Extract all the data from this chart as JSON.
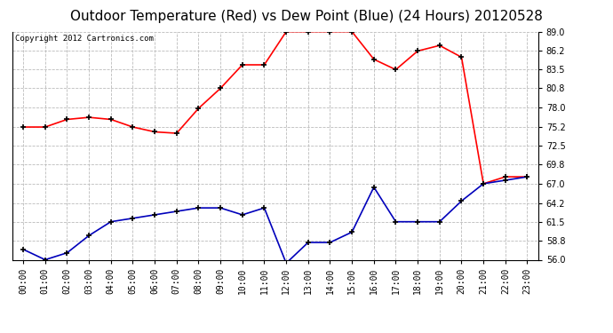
{
  "title": "Outdoor Temperature (Red) vs Dew Point (Blue) (24 Hours) 20120528",
  "copyright": "Copyright 2012 Cartronics.com",
  "x_labels": [
    "00:00",
    "01:00",
    "02:00",
    "03:00",
    "04:00",
    "05:00",
    "06:00",
    "07:00",
    "08:00",
    "09:00",
    "10:00",
    "11:00",
    "12:00",
    "13:00",
    "14:00",
    "15:00",
    "16:00",
    "17:00",
    "18:00",
    "19:00",
    "20:00",
    "21:00",
    "22:00",
    "23:00"
  ],
  "temp_red": [
    75.2,
    75.2,
    76.3,
    76.6,
    76.3,
    75.2,
    74.5,
    74.3,
    77.9,
    80.8,
    84.2,
    84.2,
    89.0,
    89.0,
    89.0,
    89.0,
    85.0,
    83.5,
    86.2,
    87.0,
    85.3,
    67.0,
    68.0,
    68.0
  ],
  "dew_blue": [
    57.5,
    56.0,
    57.0,
    59.5,
    61.5,
    62.0,
    62.5,
    63.0,
    63.5,
    63.5,
    62.5,
    63.5,
    55.5,
    58.5,
    58.5,
    60.0,
    66.5,
    61.5,
    61.5,
    61.5,
    64.5,
    67.0,
    67.5,
    68.0
  ],
  "ylim": [
    56.0,
    89.0
  ],
  "yticks": [
    56.0,
    58.8,
    61.5,
    64.2,
    67.0,
    69.8,
    72.5,
    75.2,
    78.0,
    80.8,
    83.5,
    86.2,
    89.0
  ],
  "red_color": "#ff0000",
  "blue_color": "#0000bb",
  "bg_color": "#ffffff",
  "grid_color": "#bbbbbb",
  "title_fontsize": 11,
  "copyright_fontsize": 6.5
}
